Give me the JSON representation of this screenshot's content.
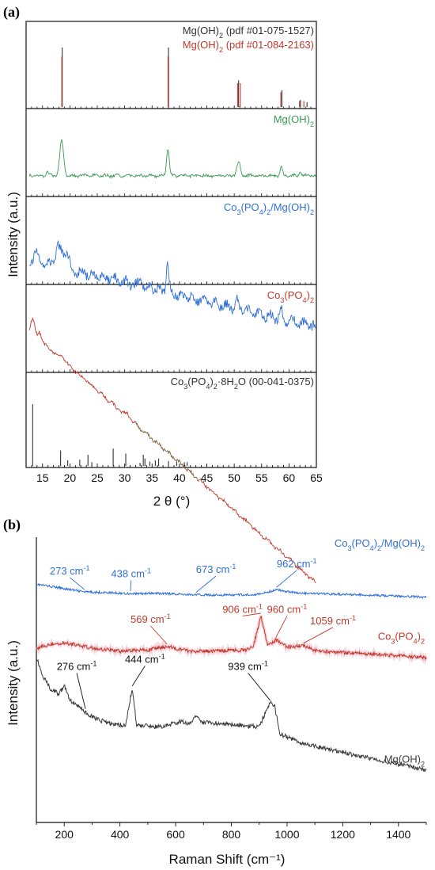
{
  "panels": {
    "a_letter": "(a)",
    "b_letter": "(b)"
  },
  "chart_data": [
    {
      "type": "line",
      "panel": "(a)",
      "xlabel": "2 θ (°)",
      "ylabel": "Intensity (a.u.)",
      "xlim": [
        12,
        65
      ],
      "x_ticks": [
        15,
        20,
        25,
        30,
        35,
        40,
        45,
        50,
        55,
        60,
        65
      ],
      "grid": false,
      "subplots": [
        {
          "kind": "reference",
          "labels": [
            {
              "text": "Mg(OH)₂ (pdf #01-075-1527)",
              "color": "#333333"
            },
            {
              "text": "Mg(OH)₂ (pdf #01-084-2163)",
              "color": "#c0392b"
            }
          ],
          "series": [
            {
              "color": "#333333",
              "peaks": [
                [
                  18.6,
                  1.0
                ],
                [
                  38.0,
                  1.0
                ],
                [
                  50.8,
                  0.45
                ],
                [
                  58.7,
                  0.28
                ],
                [
                  62.1,
                  0.12
                ],
                [
                  63.3,
                  0.08
                ]
              ]
            },
            {
              "color": "#c0392b",
              "peaks": [
                [
                  18.4,
                  0.85
                ],
                [
                  37.8,
                  0.85
                ],
                [
                  50.5,
                  0.4
                ],
                [
                  51.0,
                  0.4
                ],
                [
                  58.4,
                  0.25
                ],
                [
                  61.8,
                  0.1
                ],
                [
                  62.6,
                  0.1
                ]
              ]
            }
          ]
        },
        {
          "kind": "pattern",
          "label": "Mg(OH)₂",
          "color": "#3a9b54",
          "baseline": 0.25,
          "noise": 0.04,
          "peaks": [
            [
              18.5,
              0.55,
              0.5
            ],
            [
              15.8,
              0.06,
              0.3
            ],
            [
              37.9,
              0.42,
              0.35
            ],
            [
              50.8,
              0.2,
              0.5
            ],
            [
              58.6,
              0.14,
              0.3
            ],
            [
              62.1,
              0.06,
              0.3
            ]
          ]
        },
        {
          "kind": "pattern",
          "label": "Co₃(PO₄)₂/Mg(OH)₂",
          "color": "#2f6fd6",
          "baseline": 0.32,
          "noise": 0.14,
          "slope": -0.002,
          "peaks": [
            [
              13.8,
              0.12,
              0.6
            ],
            [
              18.0,
              0.3,
              1.0
            ],
            [
              19.5,
              0.2,
              0.6
            ],
            [
              33.0,
              0.18,
              0.3
            ],
            [
              37.8,
              0.45,
              0.35
            ],
            [
              50.6,
              0.12,
              0.4
            ],
            [
              58.5,
              0.18,
              0.3
            ]
          ]
        },
        {
          "kind": "pattern",
          "label": "Co₃(PO₄)₂",
          "color": "#c0392b",
          "color2": "#3a9b54",
          "baseline": 0.62,
          "noise": 0.05,
          "slope": -0.0075,
          "peaks": [
            [
              13.2,
              0.22,
              0.5
            ],
            [
              14.5,
              0.12,
              0.4
            ],
            [
              18.5,
              0.06,
              0.5
            ],
            [
              30.5,
              0.06,
              0.4
            ]
          ]
        },
        {
          "kind": "reference",
          "labels": [
            {
              "text": "Co₃(PO₄)₂·8H₂O (00-041-0375)",
              "color": "#333333"
            }
          ],
          "series": [
            {
              "color": "#333333",
              "peaks": [
                [
                  13.2,
                  1.0
                ],
                [
                  18.3,
                  0.25
                ],
                [
                  19.6,
                  0.09
                ],
                [
                  21.8,
                  0.1
                ],
                [
                  23.3,
                  0.18
                ],
                [
                  24.0,
                  0.06
                ],
                [
                  27.9,
                  0.28
                ],
                [
                  30.2,
                  0.2
                ],
                [
                  32.8,
                  0.05
                ],
                [
                  33.4,
                  0.18
                ],
                [
                  33.7,
                  0.12
                ],
                [
                  34.6,
                  0.07
                ],
                [
                  35.6,
                  0.09
                ],
                [
                  36.2,
                  0.12
                ],
                [
                  38.0,
                  0.08
                ],
                [
                  39.5,
                  0.07
                ],
                [
                  40.9,
                  0.06
                ],
                [
                  41.4,
                  0.06
                ]
              ]
            }
          ]
        }
      ]
    },
    {
      "type": "line",
      "panel": "(b)",
      "xlabel": "Raman Shift (cm⁻¹)",
      "ylabel": "Intensity (a.u.)",
      "xlim": [
        100,
        1500
      ],
      "ylim": [
        0,
        1
      ],
      "x_ticks": [
        200,
        400,
        600,
        800,
        1000,
        1200,
        1400
      ],
      "grid": false,
      "series": [
        {
          "name": "Co₃(PO₄)₂/Mg(OH)₂",
          "color": "#2f6fd6",
          "label_pos": [
            1000,
            0.967
          ],
          "points": [
            [
              100,
              0.835
            ],
            [
              200,
              0.82
            ],
            [
              273,
              0.808
            ],
            [
              350,
              0.806
            ],
            [
              438,
              0.802
            ],
            [
              550,
              0.803
            ],
            [
              673,
              0.798
            ],
            [
              800,
              0.797
            ],
            [
              900,
              0.8
            ],
            [
              962,
              0.816
            ],
            [
              1050,
              0.803
            ],
            [
              1200,
              0.8
            ],
            [
              1350,
              0.795
            ],
            [
              1500,
              0.79
            ]
          ],
          "noise": 0.004,
          "annotations": [
            {
              "text": "273 cm⁻¹",
              "x": 273,
              "y": 0.808,
              "lx": 220,
              "ly": 0.87
            },
            {
              "text": "438 cm⁻¹",
              "x": 438,
              "y": 0.802,
              "lx": 440,
              "ly": 0.86
            },
            {
              "text": "673 cm⁻¹",
              "x": 673,
              "y": 0.798,
              "lx": 745,
              "ly": 0.875
            },
            {
              "text": "962 cm⁻¹",
              "x": 962,
              "y": 0.816,
              "lx": 1035,
              "ly": 0.895
            }
          ]
        },
        {
          "name": "Co₃(PO₄)₂",
          "color": "#c0392b",
          "label_pos": [
            1400,
            0.64
          ],
          "points": [
            [
              100,
              0.61
            ],
            [
              150,
              0.625
            ],
            [
              200,
              0.63
            ],
            [
              300,
              0.612
            ],
            [
              400,
              0.6
            ],
            [
              500,
              0.605
            ],
            [
              569,
              0.617
            ],
            [
              650,
              0.6
            ],
            [
              750,
              0.602
            ],
            [
              850,
              0.604
            ],
            [
              880,
              0.62
            ],
            [
              906,
              0.725
            ],
            [
              930,
              0.62
            ],
            [
              960,
              0.64
            ],
            [
              1000,
              0.615
            ],
            [
              1059,
              0.62
            ],
            [
              1100,
              0.602
            ],
            [
              1300,
              0.59
            ],
            [
              1500,
              0.578
            ]
          ],
          "noise": 0.006,
          "annotations": [
            {
              "text": "569 cm⁻¹",
              "x": 569,
              "y": 0.617,
              "lx": 510,
              "ly": 0.7
            },
            {
              "text": "906 cm⁻¹",
              "x": 906,
              "y": 0.725,
              "lx": 840,
              "ly": 0.735
            },
            {
              "text": "960 cm⁻¹",
              "x": 960,
              "y": 0.64,
              "lx": 1000,
              "ly": 0.735
            },
            {
              "text": "1059 cm⁻¹",
              "x": 1059,
              "y": 0.62,
              "lx": 1165,
              "ly": 0.695
            }
          ]
        },
        {
          "name": "Mg(OH)₂",
          "color": "#3a3a3a",
          "label_pos": [
            1405,
            0.21
          ],
          "points": [
            [
              100,
              0.58
            ],
            [
              120,
              0.52
            ],
            [
              150,
              0.47
            ],
            [
              180,
              0.45
            ],
            [
              200,
              0.48
            ],
            [
              220,
              0.43
            ],
            [
              250,
              0.41
            ],
            [
              276,
              0.385
            ],
            [
              300,
              0.37
            ],
            [
              350,
              0.35
            ],
            [
              420,
              0.34
            ],
            [
              444,
              0.47
            ],
            [
              460,
              0.34
            ],
            [
              550,
              0.335
            ],
            [
              620,
              0.355
            ],
            [
              650,
              0.345
            ],
            [
              673,
              0.375
            ],
            [
              700,
              0.35
            ],
            [
              800,
              0.345
            ],
            [
              900,
              0.335
            ],
            [
              939,
              0.42
            ],
            [
              955,
              0.41
            ],
            [
              975,
              0.31
            ],
            [
              1050,
              0.28
            ],
            [
              1200,
              0.245
            ],
            [
              1350,
              0.215
            ],
            [
              1500,
              0.185
            ]
          ],
          "noise": 0.008,
          "annotations": [
            {
              "text": "276 cm⁻¹",
              "x": 276,
              "y": 0.39,
              "lx": 245,
              "ly": 0.535
            },
            {
              "text": "444 cm⁻¹",
              "x": 444,
              "y": 0.47,
              "lx": 490,
              "ly": 0.56
            },
            {
              "text": "939 cm⁻¹",
              "x": 939,
              "y": 0.42,
              "lx": 860,
              "ly": 0.535
            }
          ]
        }
      ]
    }
  ]
}
